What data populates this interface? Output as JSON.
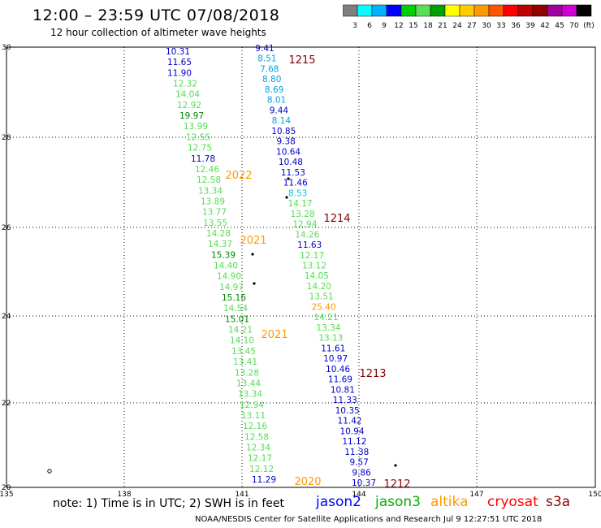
{
  "header": {
    "title": "12:00 – 23:59 UTC 07/08/2018",
    "subtitle": "12 hour collection of altimeter wave heights"
  },
  "colorbar": {
    "colors": [
      "#7f7f7f",
      "#00ffff",
      "#00b2ff",
      "#0000ff",
      "#00d000",
      "#55e055",
      "#00a000",
      "#ffff00",
      "#ffcc00",
      "#ff9900",
      "#ff5500",
      "#ff0000",
      "#c00000",
      "#900000",
      "#a000a0",
      "#d000d0",
      "#000000"
    ],
    "labels": [
      "3",
      "6",
      "9",
      "12",
      "15",
      "18",
      "21",
      "24",
      "27",
      "30",
      "33",
      "36",
      "39",
      "42",
      "45",
      "70",
      "(ft)"
    ]
  },
  "map": {
    "lon_ticks": [
      "135",
      "138",
      "141",
      "144",
      "147",
      "150"
    ],
    "lat_ticks": [
      "30",
      "28",
      "26",
      "24",
      "22",
      "20"
    ]
  },
  "tracks": [
    {
      "id": "t1",
      "color_name": "dark-blue",
      "color": "#0000cc",
      "values": [
        "10.31",
        "11.65",
        "11.90"
      ]
    },
    {
      "id": "t2",
      "color_name": "light-green",
      "color": "#55dd55",
      "values": [
        "12.32",
        "14.04",
        "12.92"
      ]
    },
    {
      "id": "t3",
      "color_name": "dark-green",
      "color": "#008800",
      "values": [
        "19.97"
      ]
    },
    {
      "id": "t4",
      "color_name": "light-green",
      "color": "#55dd55",
      "values": [
        "13.99",
        "12.55",
        "12.75"
      ]
    },
    {
      "id": "t5",
      "color_name": "dark-blue",
      "color": "#0000cc",
      "values": [
        "11.78"
      ]
    },
    {
      "id": "t6",
      "color_name": "light-green",
      "color": "#55dd55",
      "values": [
        "12.46",
        "12.58",
        "13.34",
        "13.89",
        "13.77",
        "13.55",
        "14.28",
        "14.37"
      ]
    },
    {
      "id": "t7",
      "color_name": "dark-green",
      "color": "#008800",
      "values": [
        "15.39"
      ]
    },
    {
      "id": "t8",
      "color_name": "light-green",
      "color": "#55dd55",
      "values": [
        "14.40",
        "14.90",
        "14.97"
      ]
    },
    {
      "id": "t9",
      "color_name": "dark-green",
      "color": "#008800",
      "values": [
        "15.16"
      ]
    },
    {
      "id": "t10",
      "color_name": "light-green",
      "color": "#55dd55",
      "values": [
        "14.54"
      ]
    },
    {
      "id": "t11",
      "color_name": "dark-green",
      "color": "#008800",
      "values": [
        "15.01"
      ]
    },
    {
      "id": "t12",
      "color_name": "light-green",
      "color": "#55dd55",
      "values": [
        "14.21",
        "14.10",
        "13.45",
        "13.41",
        "13.28",
        "13.44",
        "13.34",
        "12.94",
        "13.11",
        "12.16",
        "12.58",
        "12.34",
        "12.17",
        "12.12"
      ]
    },
    {
      "id": "t13",
      "color_name": "dark-blue",
      "color": "#0000cc",
      "values": [
        "11.29"
      ]
    }
  ],
  "tracks_b": [
    {
      "color_name": "dark-blue",
      "color": "#0000cc",
      "values": [
        "9.41"
      ]
    },
    {
      "color_name": "cyan-blue",
      "color": "#00a0e0",
      "values": [
        "8.51",
        "7.68",
        "8.80",
        "8.69",
        "8.01"
      ]
    },
    {
      "color_name": "dark-blue",
      "color": "#0000cc",
      "values": [
        "9.44"
      ]
    },
    {
      "color_name": "cyan-blue",
      "color": "#00a0e0",
      "values": [
        "8.14"
      ]
    },
    {
      "color_name": "dark-blue",
      "color": "#0000cc",
      "values": [
        "10.85",
        "9.38",
        "10.64",
        "10.48",
        "11.53",
        "11.46"
      ]
    },
    {
      "color_name": "cyan",
      "color": "#00c8e0",
      "values": [
        "8.53"
      ]
    },
    {
      "color_name": "light-green",
      "color": "#55dd55",
      "values": [
        "14.17",
        "13.28",
        "12.94",
        "14.26"
      ]
    },
    {
      "color_name": "dark-blue",
      "color": "#0000cc",
      "values": [
        "11.63"
      ]
    },
    {
      "color_name": "light-green",
      "color": "#55dd55",
      "values": [
        "12.17",
        "13.12",
        "14.05",
        "14.20",
        "13.51"
      ]
    },
    {
      "color_name": "orange",
      "color": "#ff9900",
      "values": [
        "25.40"
      ]
    },
    {
      "color_name": "light-green",
      "color": "#55dd55",
      "values": [
        "14.21",
        "13.34",
        "13.13"
      ]
    },
    {
      "color_name": "dark-blue",
      "color": "#0000cc",
      "values": [
        "11.61",
        "10.97",
        "10.46",
        "11.69",
        "10.81",
        "11.33",
        "10.35",
        "11.42",
        "10.94",
        "11.12",
        "11.38",
        "9.57",
        "9.86",
        "10.37"
      ]
    }
  ],
  "time_labels": [
    {
      "text": "1215",
      "color_name": "dark-red",
      "color": "#800000"
    },
    {
      "text": "2022",
      "color_name": "orange",
      "color": "#ff9900"
    },
    {
      "text": "1214",
      "color_name": "dark-red",
      "color": "#800000"
    },
    {
      "text": "2021",
      "color_name": "orange",
      "color": "#ff9900"
    },
    {
      "text": "2021",
      "color_name": "orange",
      "color": "#ff9900"
    },
    {
      "text": "1213",
      "color_name": "dark-red",
      "color": "#800000"
    },
    {
      "text": "2020",
      "color_name": "orange",
      "color": "#ff9900"
    },
    {
      "text": "1212",
      "color_name": "dark-red",
      "color": "#800000"
    }
  ],
  "footer": {
    "note": "note: 1) Time is in UTC; 2) SWH is in feet",
    "satellites": [
      {
        "name": "jason2",
        "color": "#0000ff"
      },
      {
        "name": "jason3",
        "color": "#00b000"
      },
      {
        "name": "altika",
        "color": "#ff9900"
      },
      {
        "name": "cryosat",
        "color": "#ff0000"
      },
      {
        "name": "s3a",
        "color": "#900000"
      }
    ],
    "credit": "NOAA/NESDIS Center for Satellite Applications and Research    Jul  9 12:27:51 UTC 2018"
  }
}
